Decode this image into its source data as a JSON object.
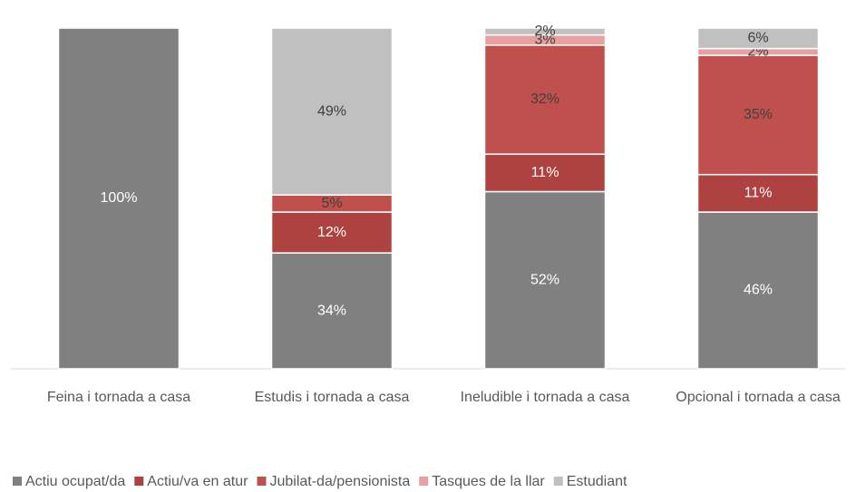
{
  "chart_data": {
    "type": "stacked_bar",
    "categories": [
      "Feina i tornada a casa",
      "Estudis i tornada a casa",
      "Ineludible i tornada a casa",
      "Opcional i tornada a casa"
    ],
    "series": [
      {
        "name": "Actiu ocupat/da",
        "color": "#808080",
        "label_color": "#ffffff",
        "values": [
          100,
          34,
          52,
          46
        ],
        "value_labels": [
          "100%",
          "34%",
          "52%",
          "46%"
        ]
      },
      {
        "name": "Actiu/va en atur",
        "color": "#ae4240",
        "label_color": "#ffffff",
        "values": [
          0,
          12,
          11,
          11
        ],
        "value_labels": [
          null,
          "12%",
          "11%",
          "11%"
        ]
      },
      {
        "name": "Jubilat-da/pensionista",
        "color": "#c0504d",
        "label_color": "#404040",
        "values": [
          0,
          5,
          32,
          35
        ],
        "value_labels": [
          null,
          "5%",
          "32%",
          "35%"
        ]
      },
      {
        "name": "Tasques de la llar",
        "color": "#e6a0a0",
        "label_color": "#404040",
        "values": [
          0,
          0,
          3,
          2
        ],
        "value_labels": [
          null,
          null,
          "3%",
          "2%"
        ]
      },
      {
        "name": "Estudiant",
        "color": "#c0c0c0",
        "label_color": "#404040",
        "values": [
          0,
          49,
          2,
          6
        ],
        "value_labels": [
          null,
          "49%",
          "2%",
          "6%"
        ]
      }
    ],
    "ylim": [
      0,
      100
    ],
    "legend": "bottom"
  }
}
